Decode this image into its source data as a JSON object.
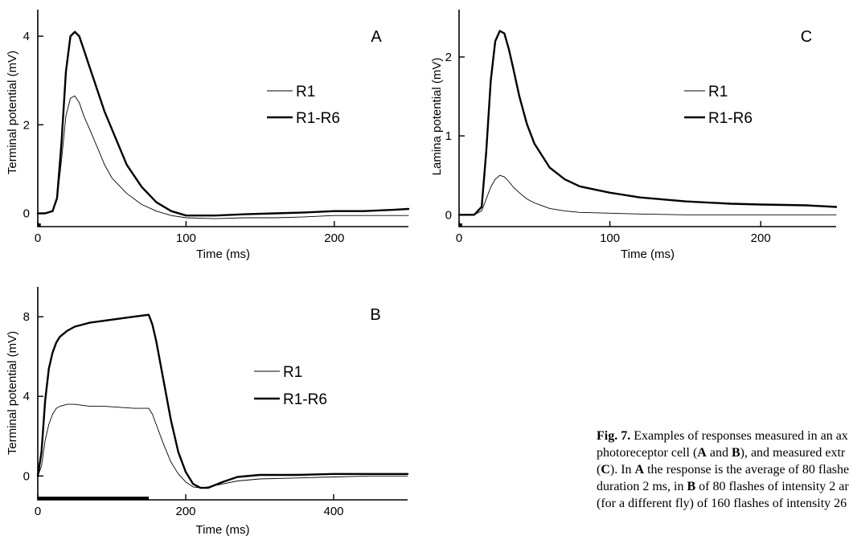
{
  "chart_data": [
    {
      "panel": "A",
      "type": "line",
      "xlabel": "Time (ms)",
      "ylabel": "Terminal potential (mV)",
      "xlim": [
        0,
        250
      ],
      "ylim": [
        -0.3,
        4.6
      ],
      "xticks": [
        0,
        100,
        200
      ],
      "yticks": [
        0,
        2,
        4
      ],
      "stimulus_bar": [
        0,
        2
      ],
      "series": [
        {
          "name": "R1",
          "stroke": "thin",
          "x": [
            0,
            5,
            10,
            13,
            16,
            19,
            22,
            25,
            28,
            31,
            35,
            40,
            45,
            50,
            60,
            70,
            80,
            90,
            100,
            120,
            140,
            160,
            180,
            200,
            220,
            240,
            250
          ],
          "y": [
            0,
            0,
            0.05,
            0.3,
            1.2,
            2.2,
            2.6,
            2.65,
            2.5,
            2.2,
            1.9,
            1.5,
            1.1,
            0.8,
            0.45,
            0.2,
            0.05,
            -0.05,
            -0.1,
            -0.12,
            -0.1,
            -0.1,
            -0.08,
            -0.05,
            -0.05,
            -0.05,
            -0.05
          ]
        },
        {
          "name": "R1-R6",
          "stroke": "thick",
          "x": [
            0,
            5,
            10,
            13,
            16,
            19,
            22,
            25,
            28,
            31,
            35,
            40,
            45,
            50,
            60,
            70,
            80,
            90,
            100,
            120,
            140,
            160,
            180,
            200,
            220,
            240,
            250
          ],
          "y": [
            0,
            0,
            0.05,
            0.35,
            1.6,
            3.2,
            4.0,
            4.1,
            4.0,
            3.7,
            3.3,
            2.8,
            2.3,
            1.9,
            1.1,
            0.6,
            0.25,
            0.05,
            -0.05,
            -0.05,
            -0.02,
            0,
            0.02,
            0.05,
            0.05,
            0.08,
            0.1
          ]
        }
      ]
    },
    {
      "panel": "B",
      "type": "line",
      "xlabel": "Time (ms)",
      "ylabel": "Terminal potential (mV)",
      "xlim": [
        0,
        500
      ],
      "ylim": [
        -1.2,
        9.5
      ],
      "xticks": [
        0,
        200,
        400
      ],
      "yticks": [
        0,
        4,
        8
      ],
      "stimulus_bar": [
        0,
        150
      ],
      "series": [
        {
          "name": "R1",
          "stroke": "thin",
          "x": [
            0,
            5,
            10,
            15,
            20,
            25,
            30,
            40,
            50,
            70,
            90,
            110,
            130,
            150,
            155,
            160,
            170,
            180,
            190,
            200,
            210,
            220,
            230,
            250,
            270,
            300,
            350,
            400,
            450,
            500
          ],
          "y": [
            0,
            0.5,
            1.8,
            2.6,
            3.1,
            3.4,
            3.5,
            3.6,
            3.6,
            3.5,
            3.5,
            3.45,
            3.4,
            3.4,
            3.1,
            2.6,
            1.6,
            0.7,
            0.1,
            -0.3,
            -0.55,
            -0.6,
            -0.55,
            -0.4,
            -0.25,
            -0.15,
            -0.1,
            -0.05,
            0,
            0
          ]
        },
        {
          "name": "R1-R6",
          "stroke": "thick",
          "x": [
            0,
            5,
            10,
            15,
            20,
            25,
            30,
            40,
            50,
            70,
            90,
            110,
            130,
            150,
            155,
            160,
            170,
            180,
            190,
            200,
            210,
            220,
            230,
            250,
            270,
            300,
            350,
            400,
            450,
            500
          ],
          "y": [
            0,
            1.2,
            3.8,
            5.4,
            6.2,
            6.7,
            7.0,
            7.3,
            7.5,
            7.7,
            7.8,
            7.9,
            8.0,
            8.1,
            7.6,
            6.8,
            4.8,
            2.8,
            1.2,
            0.2,
            -0.4,
            -0.6,
            -0.6,
            -0.3,
            -0.05,
            0.05,
            0.05,
            0.1,
            0.1,
            0.1
          ]
        }
      ]
    },
    {
      "panel": "C",
      "type": "line",
      "xlabel": "Time (ms)",
      "ylabel": "Lamina potential (mV)",
      "xlim": [
        0,
        250
      ],
      "ylim": [
        -0.15,
        2.6
      ],
      "xticks": [
        0,
        100,
        200
      ],
      "yticks": [
        0,
        1,
        2
      ],
      "stimulus_bar": [
        0,
        2
      ],
      "series": [
        {
          "name": "R1",
          "stroke": "thin",
          "x": [
            0,
            5,
            10,
            15,
            18,
            21,
            24,
            27,
            30,
            33,
            36,
            40,
            45,
            50,
            60,
            70,
            80,
            100,
            120,
            150,
            180,
            200,
            230,
            250
          ],
          "y": [
            0,
            0,
            0,
            0.05,
            0.2,
            0.35,
            0.45,
            0.5,
            0.48,
            0.42,
            0.35,
            0.28,
            0.2,
            0.15,
            0.08,
            0.05,
            0.03,
            0.02,
            0.01,
            0,
            0,
            0,
            0,
            0
          ]
        },
        {
          "name": "R1-R6",
          "stroke": "thick",
          "x": [
            0,
            5,
            10,
            15,
            18,
            21,
            24,
            27,
            30,
            33,
            36,
            40,
            45,
            50,
            60,
            70,
            80,
            100,
            120,
            150,
            180,
            200,
            230,
            250
          ],
          "y": [
            0,
            0,
            0,
            0.1,
            0.8,
            1.7,
            2.2,
            2.33,
            2.3,
            2.1,
            1.85,
            1.5,
            1.15,
            0.9,
            0.6,
            0.45,
            0.36,
            0.28,
            0.22,
            0.17,
            0.14,
            0.13,
            0.12,
            0.1
          ]
        }
      ]
    }
  ],
  "caption_lines": [
    [
      {
        "b": "Fig. 7."
      },
      {
        "t": " Examples of responses measured in an ax"
      }
    ],
    [
      {
        "t": "photoreceptor cell ("
      },
      {
        "b": "A"
      },
      {
        "t": " and "
      },
      {
        "b": "B"
      },
      {
        "t": "), and measured extr"
      }
    ],
    [
      {
        "t": "("
      },
      {
        "b": "C"
      },
      {
        "t": "). In "
      },
      {
        "b": "A"
      },
      {
        "t": " the response is the average of 80 flashe"
      }
    ],
    [
      {
        "t": "duration 2 ms, in "
      },
      {
        "b": "B"
      },
      {
        "t": " of 80 flashes of intensity 2 ar"
      }
    ],
    [
      {
        "t": "(for a different fly) of 160 flashes of intensity 26"
      }
    ]
  ]
}
